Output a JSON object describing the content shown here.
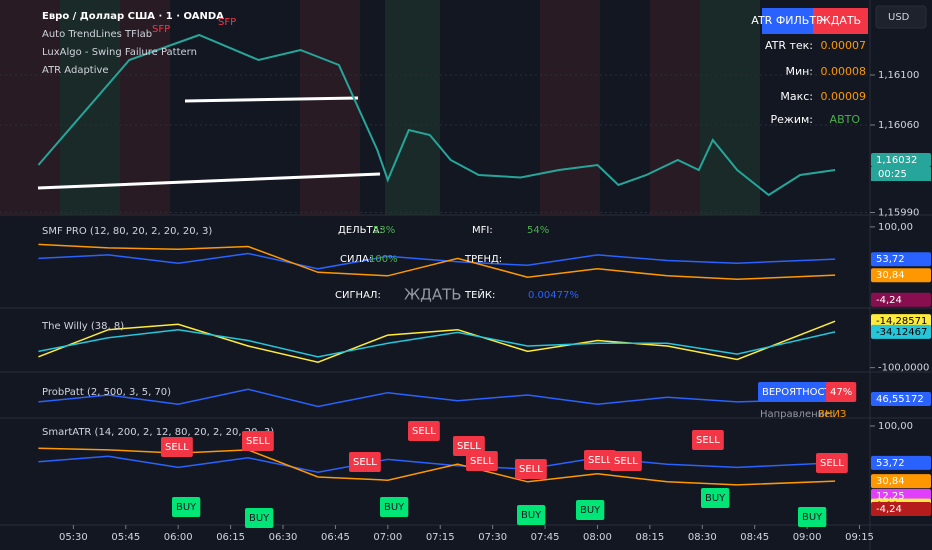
{
  "currency": "USD",
  "atr_table": {
    "title": "ATR ФИЛЬТР",
    "status": "ЖДАТЬ",
    "rows": [
      [
        "ATR тек:",
        "0.00007"
      ],
      [
        "Мин:",
        "0.00008"
      ],
      [
        "Макс:",
        "0.00009"
      ],
      [
        "Режим:",
        "АВТО"
      ]
    ]
  },
  "chart_data": [
    {
      "type": "line",
      "title": "Евро / Доллар США · 1 · OANDA",
      "x": [
        320,
        346,
        366,
        383,
        395,
        406,
        417,
        420,
        426,
        432,
        438,
        446,
        458,
        469,
        480,
        486,
        494,
        503,
        509,
        513,
        520,
        529,
        538,
        548
      ],
      "series": [
        {
          "color": "#26a69a",
          "values": [
            1.16028,
            1.16112,
            1.16132,
            1.16112,
            1.1612,
            1.16108,
            1.1604,
            1.16016,
            1.16056,
            1.16052,
            1.16032,
            1.1602,
            1.16018,
            1.16024,
            1.16028,
            1.16012,
            1.1602,
            1.16032,
            1.16024,
            1.16048,
            1.16024,
            1.16004,
            1.1602,
            1.16024
          ]
        }
      ],
      "xlim": [
        309,
        558
      ],
      "xticks": [
        {
          "value": 330,
          "label": "05:30"
        },
        {
          "value": 345,
          "label": "05:45"
        },
        {
          "value": 360,
          "label": "06:00"
        },
        {
          "value": 375,
          "label": "06:15"
        },
        {
          "value": 390,
          "label": "06:30"
        },
        {
          "value": 405,
          "label": "06:45"
        },
        {
          "value": 420,
          "label": "07:00"
        },
        {
          "value": 435,
          "label": "07:15"
        },
        {
          "value": 450,
          "label": "07:30"
        },
        {
          "value": 465,
          "label": "07:45"
        },
        {
          "value": 480,
          "label": "08:00"
        },
        {
          "value": 495,
          "label": "08:15"
        },
        {
          "value": 510,
          "label": "08:30"
        },
        {
          "value": 525,
          "label": "08:45"
        },
        {
          "value": 540,
          "label": "09:00"
        },
        {
          "value": 555,
          "label": "09:15"
        }
      ],
      "ylim": [
        1.15988,
        1.1616
      ],
      "yticks": [
        {
          "value": 1.161,
          "label": "1,16100"
        },
        {
          "value": 1.1606,
          "label": "1,16060"
        },
        {
          "value": 1.1599,
          "label": "1,15990"
        }
      ],
      "markers": [
        {
          "value": 1.16032,
          "label": "1,16032",
          "color": "#26a69a"
        }
      ],
      "countdown": "00:25",
      "annotations": [
        {
          "text": "Auto TrendLines TFlab",
          "color": "#d1d4dc"
        },
        {
          "text": "LuxAlgo - Swing Failure Pattern",
          "color": "#d1d4dc"
        },
        {
          "text": "ATR Adaptive",
          "color": "#d1d4dc"
        },
        {
          "text": "SFP",
          "color": "#f23645"
        },
        {
          "text": "SFP",
          "color": "#f23645"
        }
      ]
    },
    {
      "type": "line",
      "title": "SMF PRO (12, 80, 20, 2, 20, 20, 3)",
      "x": [
        320,
        340,
        360,
        380,
        400,
        420,
        440,
        460,
        480,
        500,
        520,
        548
      ],
      "series": [
        {
          "color": "#2962ff",
          "values": [
            55,
            60,
            48,
            62,
            40,
            58,
            50,
            45,
            60,
            52,
            48,
            54
          ]
        },
        {
          "color": "#ff9800",
          "values": [
            75,
            70,
            68,
            72,
            35,
            30,
            55,
            28,
            40,
            30,
            25,
            31
          ]
        }
      ],
      "ylim": [
        -16,
        117
      ],
      "yticks": [
        {
          "value": 100,
          "label": "100,00"
        }
      ],
      "markers": [
        {
          "value": 53.72,
          "label": "53,72",
          "color": "#2962ff"
        },
        {
          "value": 30.84,
          "label": "30,84",
          "color": "#ff9800"
        },
        {
          "value": -4.24,
          "label": "-4,24",
          "color": "#880e4f"
        }
      ],
      "annotations": [
        {
          "text": "ДЕЛЬТА:",
          "color": "#ffffff"
        },
        {
          "text": "53%",
          "color": "#4caf50"
        },
        {
          "text": "MFI:",
          "color": "#ffffff"
        },
        {
          "text": "54%",
          "color": "#4caf50"
        },
        {
          "text": "СИЛА:",
          "color": "#ffffff"
        },
        {
          "text": "100%",
          "color": "#4caf50"
        },
        {
          "text": "ТРЕНД:",
          "color": "#ffffff"
        },
        {
          "text": "СИГНАЛ:",
          "color": "#ffffff"
        },
        {
          "text": "ЖДАТЬ",
          "color": "#9598a1"
        },
        {
          "text": "ТЕЙК:",
          "color": "#ffffff"
        },
        {
          "text": "0.00477%",
          "color": "#2962ff"
        }
      ]
    },
    {
      "type": "line",
      "title": "The Willy (38, 8)",
      "x": [
        320,
        340,
        360,
        380,
        400,
        420,
        440,
        460,
        480,
        500,
        520,
        548
      ],
      "series": [
        {
          "color": "#ffeb3b",
          "values": [
            -80,
            -30,
            -20,
            -60,
            -90,
            -40,
            -30,
            -70,
            -50,
            -60,
            -85,
            -14.28571
          ]
        },
        {
          "color": "#26c6da",
          "values": [
            -70,
            -45,
            -30,
            -50,
            -80,
            -55,
            -35,
            -60,
            -55,
            -55,
            -75,
            -34.12467
          ]
        }
      ],
      "ylim": [
        -108,
        10
      ],
      "yticks": [
        {
          "value": -100,
          "label": "-100,0000"
        }
      ],
      "markers": [
        {
          "value": -14.28571,
          "label": "-14,28571",
          "color": "#ffeb3b"
        },
        {
          "value": -34.12467,
          "label": "-34,12467",
          "color": "#26c6da"
        }
      ],
      "annotations": []
    },
    {
      "type": "line",
      "title": "ProbPatt (2, 500, 3, 5, 70)",
      "x": [
        320,
        340,
        360,
        380,
        400,
        420,
        440,
        460,
        480,
        500,
        520,
        548
      ],
      "series": [
        {
          "color": "#2962ff",
          "values": [
            44,
            50,
            42,
            55,
            40,
            52,
            45,
            50,
            42,
            48,
            44,
            46.55172
          ]
        }
      ],
      "ylim": [
        30,
        70
      ],
      "yticks": [],
      "markers": [
        {
          "value": 46.55172,
          "label": "46,55172",
          "color": "#2962ff"
        }
      ],
      "annotations": [
        {
          "text": "ВЕРОЯТНОСТЬ",
          "color": "#ffffff",
          "background": "#2962ff"
        },
        {
          "text": "47%",
          "color": "#ffffff",
          "background": "#f23645"
        },
        {
          "text": "Направление:",
          "color": "#9598a1"
        },
        {
          "text": "ВНИЗ",
          "color": "#ff9800"
        }
      ]
    },
    {
      "type": "line",
      "title": "SmartATR (14, 200, 2, 12, 80, 20, 2, 20, 20, 3)",
      "x": [
        320,
        340,
        360,
        380,
        400,
        420,
        440,
        460,
        480,
        500,
        520,
        548
      ],
      "series": [
        {
          "color": "#2962ff",
          "values": [
            55,
            62,
            48,
            60,
            42,
            58,
            50,
            46,
            60,
            52,
            48,
            53.72
          ]
        },
        {
          "color": "#ff9800",
          "values": [
            72,
            70,
            66,
            70,
            36,
            32,
            52,
            30,
            40,
            30,
            26,
            30.84
          ]
        }
      ],
      "ylim": [
        -18,
        110
      ],
      "yticks": [
        {
          "value": 100,
          "label": "100,00"
        }
      ],
      "markers": [
        {
          "value": 53.72,
          "label": "53,72",
          "color": "#2962ff"
        },
        {
          "value": 30.84,
          "label": "30,84",
          "color": "#ff9800"
        },
        {
          "value": 12.25,
          "label": "12,25",
          "color": "#e040fb"
        },
        {
          "value": 0,
          "label": "0,00",
          "color": "#ffeb3b"
        },
        {
          "value": -4.24,
          "label": "-4,24",
          "color": "#b71c1c"
        }
      ],
      "annotations": [
        {
          "text": "SELL",
          "color": "#ffffff",
          "background": "#f23645"
        },
        {
          "text": "SELL",
          "color": "#ffffff",
          "background": "#f23645"
        },
        {
          "text": "SELL",
          "color": "#ffffff",
          "background": "#f23645"
        },
        {
          "text": "SELL",
          "color": "#ffffff",
          "background": "#f23645"
        },
        {
          "text": "SELL",
          "color": "#ffffff",
          "background": "#f23645"
        },
        {
          "text": "SELL",
          "color": "#ffffff",
          "background": "#f23645"
        },
        {
          "text": "SELL",
          "color": "#ffffff",
          "background": "#f23645"
        },
        {
          "text": "SELL",
          "color": "#ffffff",
          "background": "#f23645"
        },
        {
          "text": "SELL",
          "color": "#ffffff",
          "background": "#f23645"
        },
        {
          "text": "SELL",
          "color": "#ffffff",
          "background": "#f23645"
        },
        {
          "text": "SELL",
          "color": "#ffffff",
          "background": "#f23645"
        },
        {
          "text": "BUY",
          "color": "#131722",
          "background": "#00e676"
        },
        {
          "text": "BUY",
          "color": "#131722",
          "background": "#00e676"
        },
        {
          "text": "BUY",
          "color": "#131722",
          "background": "#00e676"
        },
        {
          "text": "BUY",
          "color": "#131722",
          "background": "#00e676"
        },
        {
          "text": "BUY",
          "color": "#131722",
          "background": "#00e676"
        },
        {
          "text": "BUY",
          "color": "#131722",
          "background": "#00e676"
        },
        {
          "text": "BUY",
          "color": "#131722",
          "background": "#00e676"
        }
      ]
    }
  ]
}
